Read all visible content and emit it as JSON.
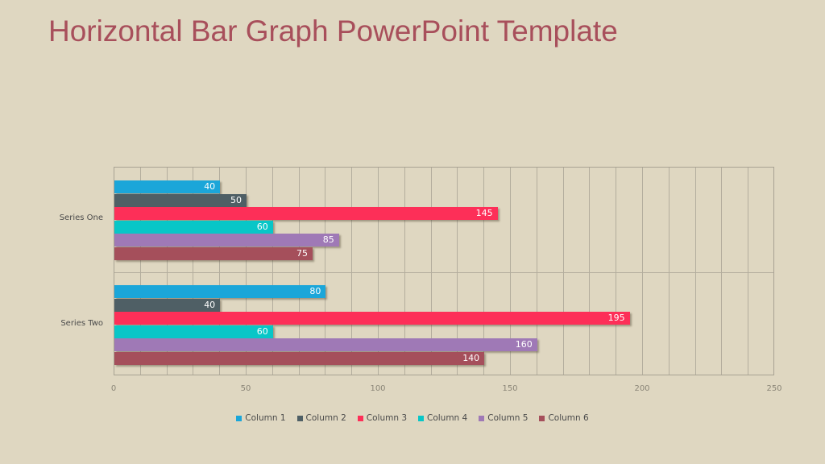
{
  "title": "Horizontal Bar Graph PowerPoint Template",
  "chart_data": {
    "type": "bar",
    "orientation": "horizontal",
    "title": "",
    "xlabel": "",
    "ylabel": "",
    "xlim": [
      0,
      250
    ],
    "x_ticks": [
      0,
      50,
      100,
      150,
      200,
      250
    ],
    "grid": true,
    "legend_position": "bottom",
    "categories": [
      "Series One",
      "Series Two"
    ],
    "series": [
      {
        "name": "Column 1",
        "color": "#1ba6d9",
        "values": [
          40,
          80
        ]
      },
      {
        "name": "Column 2",
        "color": "#4f5f65",
        "values": [
          50,
          40
        ]
      },
      {
        "name": "Column 3",
        "color": "#fd2f58",
        "values": [
          145,
          195
        ]
      },
      {
        "name": "Column 4",
        "color": "#08c6c7",
        "values": [
          60,
          60
        ]
      },
      {
        "name": "Column 5",
        "color": "#9f79b6",
        "values": [
          85,
          160
        ]
      },
      {
        "name": "Column 6",
        "color": "#a54f5b",
        "values": [
          75,
          140
        ]
      }
    ]
  }
}
